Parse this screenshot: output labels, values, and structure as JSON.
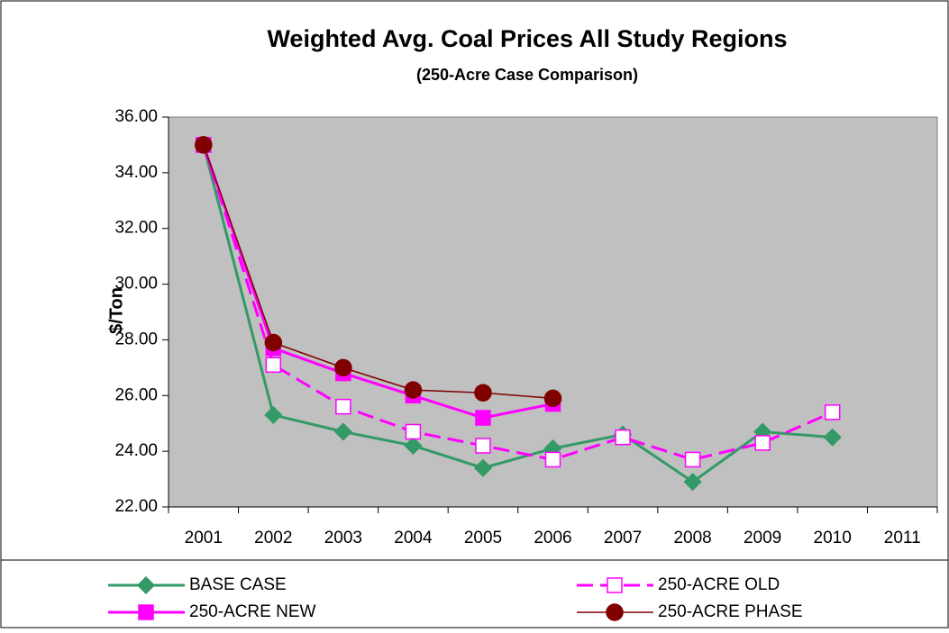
{
  "chart_data": {
    "type": "line",
    "title": "Weighted Avg. Coal Prices All Study Regions",
    "subtitle": "(250-Acre Case Comparison)",
    "y_label": "$/Ton",
    "categories": [
      "2001",
      "2002",
      "2003",
      "2004",
      "2005",
      "2006",
      "2007",
      "2008",
      "2009",
      "2010",
      "2011"
    ],
    "series": [
      {
        "name": "BASE CASE",
        "color": "#339966",
        "marker": "diamond",
        "filled": true,
        "dashed": false,
        "width": 3,
        "values": [
          35.0,
          25.3,
          24.7,
          24.2,
          23.4,
          24.1,
          24.6,
          22.9,
          24.7,
          24.5,
          null
        ]
      },
      {
        "name": "250-ACRE OLD",
        "color": "#ff00ff",
        "marker": "square",
        "filled": false,
        "dashed": true,
        "width": 3,
        "values": [
          35.0,
          27.1,
          25.6,
          24.7,
          24.2,
          23.7,
          24.5,
          23.7,
          24.3,
          25.4,
          null
        ]
      },
      {
        "name": "250-ACRE NEW",
        "color": "#ff00ff",
        "marker": "square",
        "filled": true,
        "dashed": false,
        "width": 3,
        "values": [
          35.0,
          27.7,
          26.8,
          26.0,
          25.2,
          25.7,
          null,
          null,
          null,
          null,
          null
        ]
      },
      {
        "name": "250-ACRE PHASE",
        "color": "#800000",
        "marker": "circle",
        "filled": true,
        "dashed": false,
        "width": 1.5,
        "values": [
          35.0,
          27.9,
          27.0,
          26.2,
          26.1,
          25.9,
          null,
          null,
          null,
          null,
          null
        ]
      }
    ],
    "ylim": [
      22,
      36
    ],
    "yticks": [
      {
        "value": 22,
        "label": "22.00"
      },
      {
        "value": 24,
        "label": "24.00"
      },
      {
        "value": 26,
        "label": "26.00"
      },
      {
        "value": 28,
        "label": "28.00"
      },
      {
        "value": 30,
        "label": "30.00"
      },
      {
        "value": 32,
        "label": "32.00"
      },
      {
        "value": 34,
        "label": "34.00"
      },
      {
        "value": 36,
        "label": "36.00"
      }
    ],
    "legend": "bottom",
    "plot_background": "#c0c0c0"
  }
}
